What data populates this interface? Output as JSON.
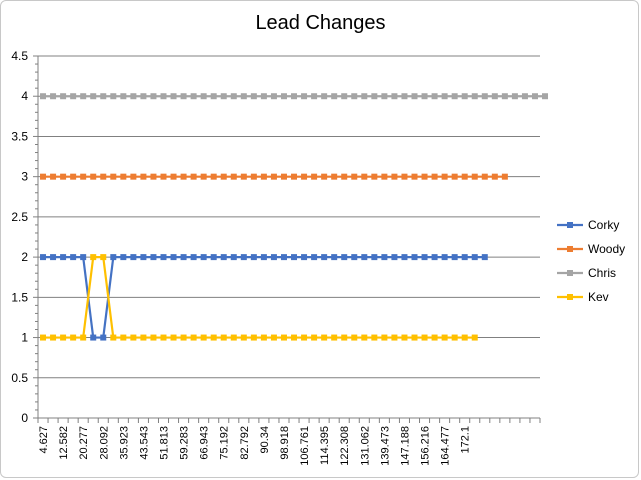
{
  "chart_data": {
    "type": "line",
    "title": "Lead Changes",
    "xlabel": "",
    "ylabel": "",
    "ylim": [
      0,
      4.5
    ],
    "yticks": [
      "0",
      "0.5",
      "1",
      "1.5",
      "2",
      "2.5",
      "3",
      "3.5",
      "4",
      "4.5"
    ],
    "x_tick_labels": [
      "4.627",
      "12.582",
      "20.277",
      "28.092",
      "35.923",
      "43.543",
      "51.813",
      "59.283",
      "66.943",
      "75.192",
      "82.792",
      "90.34",
      "98.918",
      "106.761",
      "114.395",
      "122.308",
      "131.062",
      "139.473",
      "147.188",
      "156.216",
      "164.477",
      "172.1"
    ],
    "grid": true,
    "legend_position": "right",
    "series": [
      {
        "name": "Corky",
        "color": "#4472C4",
        "values": [
          2,
          2,
          2,
          2,
          2,
          1,
          1,
          2,
          2,
          2,
          2,
          2,
          2,
          2,
          2,
          2,
          2,
          2,
          2,
          2,
          2,
          2,
          2,
          2,
          2,
          2,
          2,
          2,
          2,
          2,
          2,
          2,
          2,
          2,
          2,
          2,
          2,
          2,
          2,
          2,
          2,
          2,
          2,
          2,
          2
        ]
      },
      {
        "name": "Woody",
        "color": "#ED7D31",
        "values": [
          3,
          3,
          3,
          3,
          3,
          3,
          3,
          3,
          3,
          3,
          3,
          3,
          3,
          3,
          3,
          3,
          3,
          3,
          3,
          3,
          3,
          3,
          3,
          3,
          3,
          3,
          3,
          3,
          3,
          3,
          3,
          3,
          3,
          3,
          3,
          3,
          3,
          3,
          3,
          3,
          3,
          3,
          3,
          3,
          3,
          3,
          3
        ]
      },
      {
        "name": "Chris",
        "color": "#A5A5A5",
        "values": [
          4,
          4,
          4,
          4,
          4,
          4,
          4,
          4,
          4,
          4,
          4,
          4,
          4,
          4,
          4,
          4,
          4,
          4,
          4,
          4,
          4,
          4,
          4,
          4,
          4,
          4,
          4,
          4,
          4,
          4,
          4,
          4,
          4,
          4,
          4,
          4,
          4,
          4,
          4,
          4,
          4,
          4,
          4,
          4,
          4,
          4,
          4,
          4,
          4,
          4,
          4
        ]
      },
      {
        "name": "Kev",
        "color": "#FFC000",
        "values": [
          1,
          1,
          1,
          1,
          1,
          2,
          2,
          1,
          1,
          1,
          1,
          1,
          1,
          1,
          1,
          1,
          1,
          1,
          1,
          1,
          1,
          1,
          1,
          1,
          1,
          1,
          1,
          1,
          1,
          1,
          1,
          1,
          1,
          1,
          1,
          1,
          1,
          1,
          1,
          1,
          1,
          1,
          1,
          1
        ]
      }
    ]
  }
}
